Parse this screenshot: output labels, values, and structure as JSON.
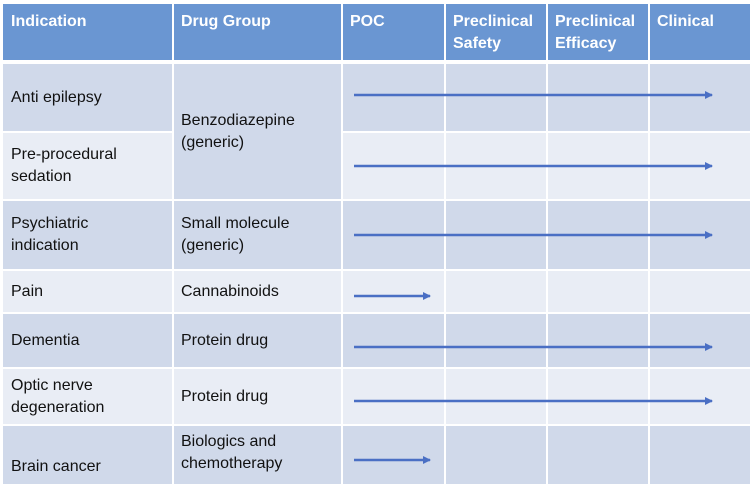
{
  "table": {
    "headers": [
      [
        "Indication"
      ],
      [
        "Drug Group"
      ],
      [
        "POC"
      ],
      [
        "Preclinical",
        "Safety"
      ],
      [
        "Preclinical",
        "Efficacy"
      ],
      [
        "Clinical"
      ]
    ],
    "rows": [
      {
        "indication": [
          "Anti epilepsy"
        ],
        "progress_stage": "Clinical"
      },
      {
        "indication": [
          "Pre-procedural",
          "sedation"
        ],
        "progress_stage": "Clinical"
      },
      {
        "indication": [
          "Psychiatric",
          "indication"
        ],
        "drug_group": [
          "Small molecule",
          "(generic)"
        ],
        "progress_stage": "Clinical"
      },
      {
        "indication": [
          "Pain"
        ],
        "drug_group": [
          "Cannabinoids"
        ],
        "progress_stage": "POC"
      },
      {
        "indication": [
          "Dementia"
        ],
        "drug_group": [
          "Protein drug"
        ],
        "progress_stage": "Clinical"
      },
      {
        "indication": [
          "Optic nerve",
          "degeneration"
        ],
        "drug_group": [
          "Protein drug"
        ],
        "progress_stage": "Clinical"
      },
      {
        "indication": [
          "Brain cancer"
        ],
        "drug_group": [
          "Biologics and",
          "chemotherapy"
        ],
        "progress_stage": "POC"
      }
    ],
    "merged_drug_group": {
      "rows": [
        0,
        1
      ],
      "text": [
        "Benzodiazepine",
        "(generic)"
      ]
    }
  },
  "colors": {
    "header": "#6a96d2",
    "row_dark": "#d0d9ea",
    "row_light": "#e9edf5",
    "arrow": "#4a6fc4"
  }
}
